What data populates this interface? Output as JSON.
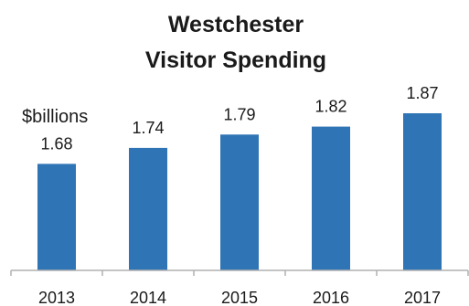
{
  "chart_data": {
    "type": "bar",
    "title_lines": [
      "Westchester",
      "Visitor Spending"
    ],
    "unit_label": "$billions",
    "categories": [
      "2013",
      "2014",
      "2015",
      "2016",
      "2017"
    ],
    "values": [
      1.68,
      1.74,
      1.79,
      1.82,
      1.87
    ],
    "data_labels": [
      "1.68",
      "1.74",
      "1.79",
      "1.82",
      "1.87"
    ],
    "bar_color": "#2f74b5",
    "axis_color": "#b0b0b0",
    "grid": false,
    "legend": "none"
  }
}
